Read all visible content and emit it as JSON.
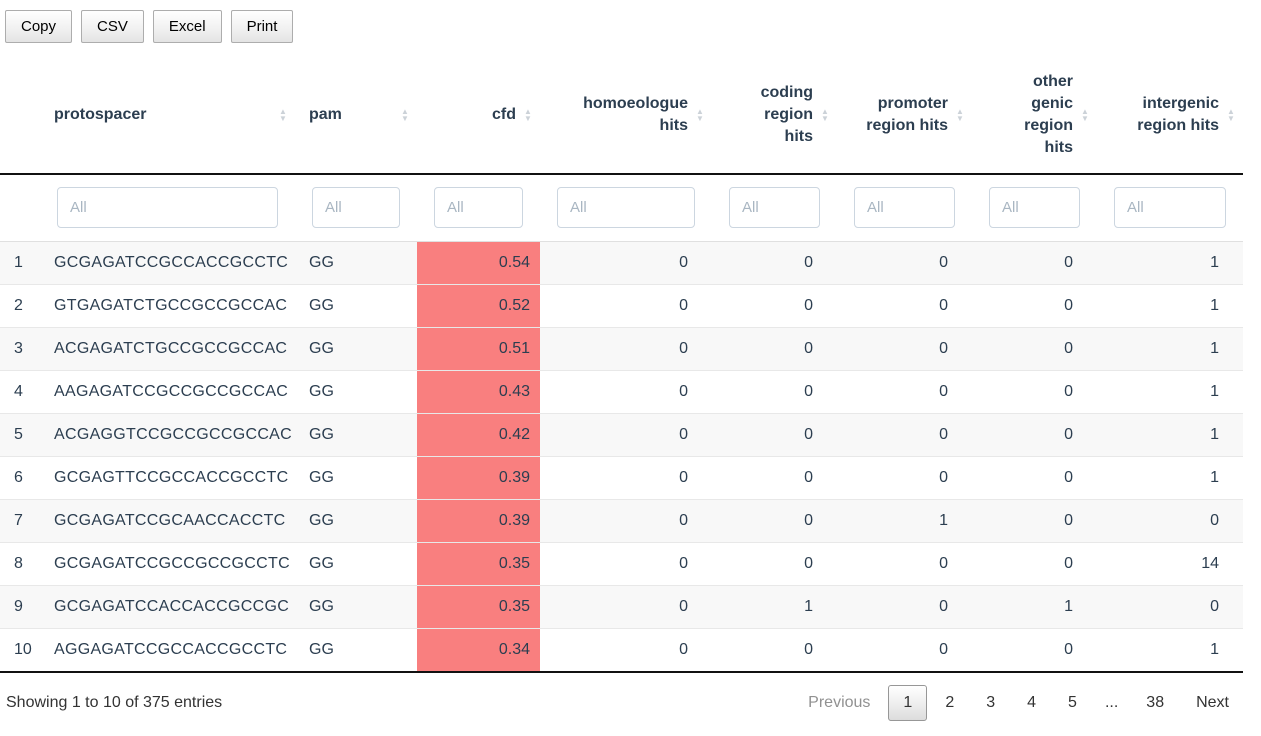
{
  "toolbar": {
    "buttons": [
      {
        "id": "copy",
        "label": "Copy"
      },
      {
        "id": "csv",
        "label": "CSV"
      },
      {
        "id": "excel",
        "label": "Excel"
      },
      {
        "id": "print",
        "label": "Print"
      }
    ]
  },
  "table": {
    "columns": [
      {
        "key": "rownum",
        "label": "",
        "sortable": false,
        "align": "left",
        "filter": null
      },
      {
        "key": "protospacer",
        "label": "protospacer",
        "sortable": true,
        "align": "left",
        "filter": "All"
      },
      {
        "key": "pam",
        "label": "pam",
        "sortable": true,
        "align": "left",
        "filter": "All"
      },
      {
        "key": "cfd",
        "label": "cfd",
        "sortable": true,
        "align": "right",
        "filter": "All"
      },
      {
        "key": "homoeologue_hits",
        "label": "homoeologue\nhits",
        "sortable": true,
        "align": "right",
        "filter": "All"
      },
      {
        "key": "coding_region_hits",
        "label": "coding\nregion\nhits",
        "sortable": true,
        "align": "right",
        "filter": "All"
      },
      {
        "key": "promoter_region_hits",
        "label": "promoter\nregion hits",
        "sortable": true,
        "align": "right",
        "filter": "All"
      },
      {
        "key": "other_genic_region_hits",
        "label": "other\ngenic\nregion\nhits",
        "sortable": true,
        "align": "right",
        "filter": "All"
      },
      {
        "key": "intergenic_region_hits",
        "label": "intergenic\nregion hits",
        "sortable": true,
        "align": "right",
        "filter": "All"
      }
    ],
    "rows": [
      {
        "rownum": 1,
        "protospacer": "GCGAGATCCGCCACCGCCTC",
        "pam": "GG",
        "cfd": "0.54",
        "homoeologue_hits": 0,
        "coding_region_hits": 0,
        "promoter_region_hits": 0,
        "other_genic_region_hits": 0,
        "intergenic_region_hits": 1
      },
      {
        "rownum": 2,
        "protospacer": "GTGAGATCTGCCGCCGCCAC",
        "pam": "GG",
        "cfd": "0.52",
        "homoeologue_hits": 0,
        "coding_region_hits": 0,
        "promoter_region_hits": 0,
        "other_genic_region_hits": 0,
        "intergenic_region_hits": 1
      },
      {
        "rownum": 3,
        "protospacer": "ACGAGATCTGCCGCCGCCAC",
        "pam": "GG",
        "cfd": "0.51",
        "homoeologue_hits": 0,
        "coding_region_hits": 0,
        "promoter_region_hits": 0,
        "other_genic_region_hits": 0,
        "intergenic_region_hits": 1
      },
      {
        "rownum": 4,
        "protospacer": "AAGAGATCCGCCGCCGCCAC",
        "pam": "GG",
        "cfd": "0.43",
        "homoeologue_hits": 0,
        "coding_region_hits": 0,
        "promoter_region_hits": 0,
        "other_genic_region_hits": 0,
        "intergenic_region_hits": 1
      },
      {
        "rownum": 5,
        "protospacer": "ACGAGGTCCGCCGCCGCCAC",
        "pam": "GG",
        "cfd": "0.42",
        "homoeologue_hits": 0,
        "coding_region_hits": 0,
        "promoter_region_hits": 0,
        "other_genic_region_hits": 0,
        "intergenic_region_hits": 1
      },
      {
        "rownum": 6,
        "protospacer": "GCGAGTTCCGCCACCGCCTC",
        "pam": "GG",
        "cfd": "0.39",
        "homoeologue_hits": 0,
        "coding_region_hits": 0,
        "promoter_region_hits": 0,
        "other_genic_region_hits": 0,
        "intergenic_region_hits": 1
      },
      {
        "rownum": 7,
        "protospacer": "GCGAGATCCGCAACCACCTC",
        "pam": "GG",
        "cfd": "0.39",
        "homoeologue_hits": 0,
        "coding_region_hits": 0,
        "promoter_region_hits": 1,
        "other_genic_region_hits": 0,
        "intergenic_region_hits": 0
      },
      {
        "rownum": 8,
        "protospacer": "GCGAGATCCGCCGCCGCCTC",
        "pam": "GG",
        "cfd": "0.35",
        "homoeologue_hits": 0,
        "coding_region_hits": 0,
        "promoter_region_hits": 0,
        "other_genic_region_hits": 0,
        "intergenic_region_hits": 14
      },
      {
        "rownum": 9,
        "protospacer": "GCGAGATCCACCACCGCCGC",
        "pam": "GG",
        "cfd": "0.35",
        "homoeologue_hits": 0,
        "coding_region_hits": 1,
        "promoter_region_hits": 0,
        "other_genic_region_hits": 1,
        "intergenic_region_hits": 0
      },
      {
        "rownum": 10,
        "protospacer": "AGGAGATCCGCCACCGCCTC",
        "pam": "GG",
        "cfd": "0.34",
        "homoeologue_hits": 0,
        "coding_region_hits": 0,
        "promoter_region_hits": 0,
        "other_genic_region_hits": 0,
        "intergenic_region_hits": 1
      }
    ]
  },
  "footer": {
    "info": "Showing 1 to 10 of 375 entries",
    "pagination": {
      "previous": "Previous",
      "pages": [
        "1",
        "2",
        "3",
        "4",
        "5",
        "...",
        "38"
      ],
      "current": "1",
      "next": "Next"
    }
  },
  "colors": {
    "cfd_cell": "#f97f7f",
    "header_text": "#2c3e50",
    "stripe": "#f8f8f8",
    "thead_border": "#111111"
  }
}
